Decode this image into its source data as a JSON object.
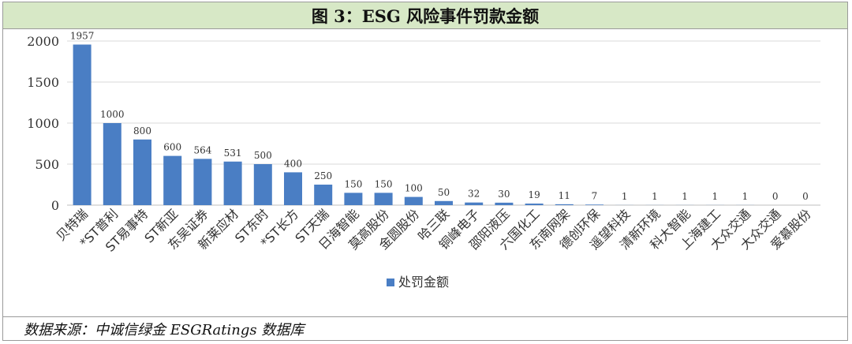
{
  "title": "图 3：ESG 风险事件罚款金额",
  "source": "数据来源：中诚信绿金 ESGRatings 数据库",
  "chart_data": {
    "type": "bar",
    "title": "",
    "xlabel": "",
    "ylabel": "",
    "ylim": [
      0,
      2000
    ],
    "yticks": [
      0,
      500,
      1000,
      1500,
      2000
    ],
    "grid": true,
    "legend_position": "bottom",
    "bar_color": "#4a7ec4",
    "categories": [
      "贝特瑞",
      "*ST普利",
      "ST易事特",
      "ST新亚",
      "东吴证券",
      "新莱应材",
      "ST东时",
      "*ST长方",
      "ST天瑞",
      "日海智能",
      "莫高股份",
      "金圆股份",
      "哈三联",
      "铜峰电子",
      "邵阳液压",
      "六国化工",
      "东南网架",
      "德创环保",
      "遥望科技",
      "清新环境",
      "科大智能",
      "上海建工",
      "大众交通",
      "大众交通",
      "爱慕股份"
    ],
    "series": [
      {
        "name": "处罚金额",
        "values": [
          1957,
          1000,
          800,
          600,
          564,
          531,
          500,
          400,
          250,
          150,
          150,
          100,
          50,
          32,
          30,
          19,
          11,
          7,
          1,
          1,
          1,
          1,
          1,
          0,
          0
        ]
      }
    ]
  }
}
